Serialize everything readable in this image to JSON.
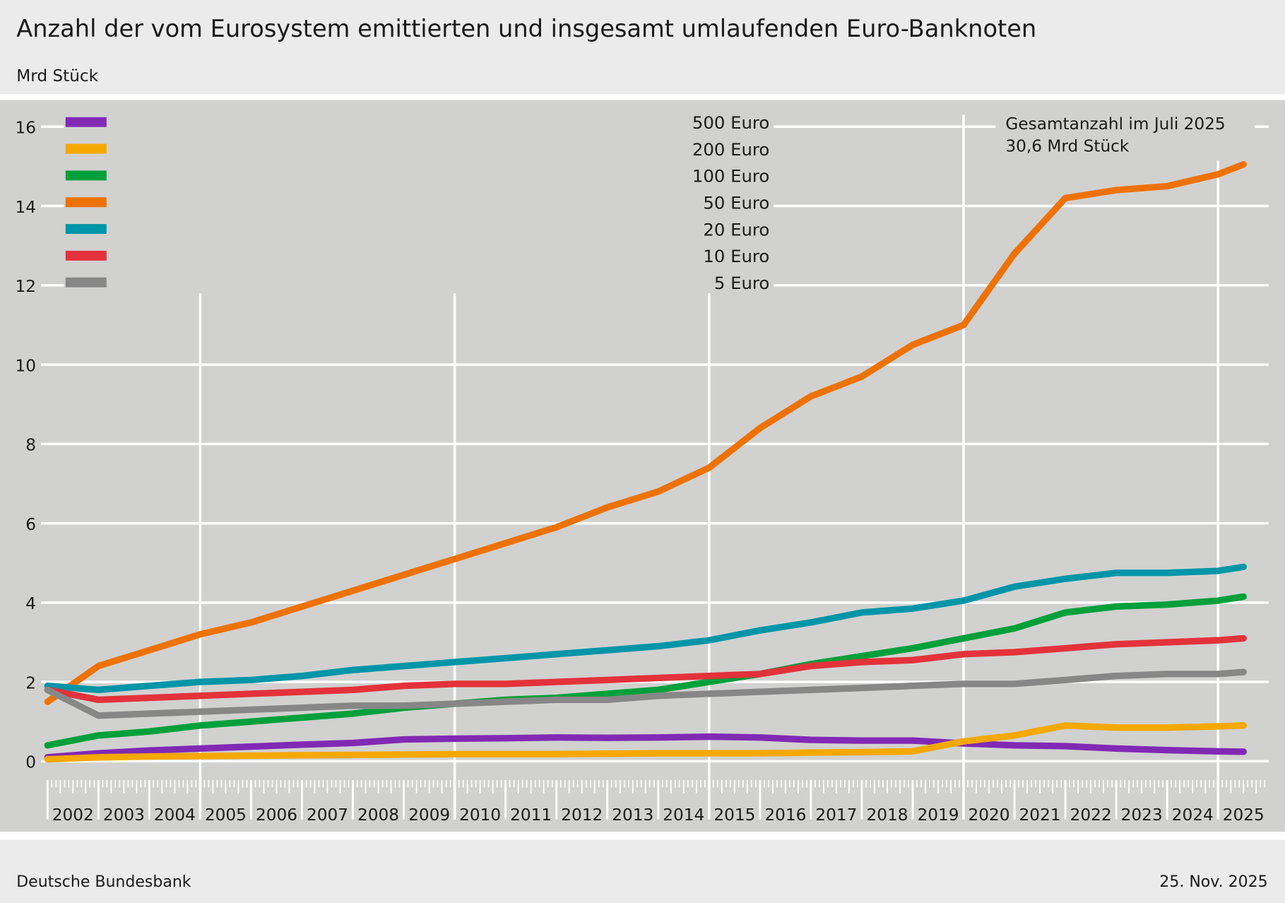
{
  "header": {
    "title": "Anzahl der vom Eurosystem emittierten und insgesamt umlaufenden Euro-Banknoten",
    "unit": "Mrd Stück"
  },
  "footer": {
    "source": "Deutsche Bundesbank",
    "date": "25. Nov. 2025"
  },
  "annotation": {
    "line1": "Gesamtanzahl im  Juli 2025",
    "line2": "30,6 Mrd Stück"
  },
  "chart_data": {
    "type": "line",
    "title": "Anzahl der vom Eurosystem emittierten und insgesamt umlaufenden Euro-Banknoten",
    "ylabel": "Mrd Stück",
    "ylim": [
      0,
      16
    ],
    "yticks": [
      "0",
      "2",
      "4",
      "6",
      "8",
      "10",
      "12",
      "14",
      "16"
    ],
    "xlim": [
      "2002-01",
      "2025-12"
    ],
    "xticks": [
      "2002",
      "2003",
      "2004",
      "2005",
      "2006",
      "2007",
      "2008",
      "2009",
      "2010",
      "2011",
      "2012",
      "2013",
      "2014",
      "2015",
      "2016",
      "2017",
      "2018",
      "2019",
      "2020",
      "2021",
      "2022",
      "2023",
      "2024",
      "2025"
    ],
    "grid": true,
    "legend_position": "top-left",
    "x": [
      "2002-01",
      "2003-01",
      "2004-01",
      "2005-01",
      "2006-01",
      "2007-01",
      "2008-01",
      "2009-01",
      "2010-01",
      "2011-01",
      "2012-01",
      "2013-01",
      "2014-01",
      "2015-01",
      "2016-01",
      "2017-01",
      "2018-01",
      "2019-01",
      "2020-01",
      "2021-01",
      "2022-01",
      "2023-01",
      "2024-01",
      "2025-01",
      "2025-07"
    ],
    "series": [
      {
        "name": "500 Euro",
        "color": "#8129b4",
        "values": [
          0.1,
          0.2,
          0.27,
          0.32,
          0.37,
          0.42,
          0.46,
          0.55,
          0.57,
          0.58,
          0.6,
          0.59,
          0.6,
          0.62,
          0.6,
          0.54,
          0.52,
          0.52,
          0.45,
          0.4,
          0.38,
          0.32,
          0.28,
          0.25,
          0.24
        ]
      },
      {
        "name": "200 Euro",
        "color": "#f5a800",
        "values": [
          0.05,
          0.1,
          0.12,
          0.13,
          0.14,
          0.15,
          0.16,
          0.17,
          0.18,
          0.18,
          0.18,
          0.19,
          0.2,
          0.2,
          0.2,
          0.22,
          0.23,
          0.25,
          0.5,
          0.65,
          0.9,
          0.85,
          0.85,
          0.88,
          0.9
        ]
      },
      {
        "name": "100 Euro",
        "color": "#00a03a",
        "values": [
          0.4,
          0.65,
          0.75,
          0.9,
          1.0,
          1.1,
          1.2,
          1.35,
          1.45,
          1.55,
          1.6,
          1.7,
          1.8,
          2.0,
          2.2,
          2.45,
          2.65,
          2.85,
          3.1,
          3.35,
          3.75,
          3.9,
          3.95,
          4.05,
          4.15
        ]
      },
      {
        "name": "50 Euro",
        "color": "#ee7203",
        "values": [
          1.5,
          2.4,
          2.8,
          3.2,
          3.5,
          3.9,
          4.3,
          4.7,
          5.1,
          5.5,
          5.9,
          6.4,
          6.8,
          7.4,
          8.4,
          9.2,
          9.7,
          10.5,
          11.0,
          12.8,
          14.2,
          14.4,
          14.5,
          14.8,
          15.05
        ]
      },
      {
        "name": "20 Euro",
        "color": "#0095a8",
        "values": [
          1.9,
          1.8,
          1.9,
          2.0,
          2.05,
          2.15,
          2.3,
          2.4,
          2.5,
          2.6,
          2.7,
          2.8,
          2.9,
          3.05,
          3.3,
          3.5,
          3.75,
          3.85,
          4.05,
          4.4,
          4.6,
          4.75,
          4.75,
          4.8,
          4.9
        ]
      },
      {
        "name": "10 Euro",
        "color": "#e3323a",
        "values": [
          1.8,
          1.55,
          1.6,
          1.65,
          1.7,
          1.75,
          1.8,
          1.9,
          1.95,
          1.95,
          2.0,
          2.05,
          2.1,
          2.15,
          2.2,
          2.4,
          2.5,
          2.55,
          2.7,
          2.75,
          2.85,
          2.95,
          3.0,
          3.05,
          3.1
        ]
      },
      {
        "name": "5 Euro",
        "color": "#878787",
        "values": [
          1.8,
          1.15,
          1.2,
          1.25,
          1.3,
          1.35,
          1.4,
          1.4,
          1.45,
          1.5,
          1.55,
          1.55,
          1.65,
          1.7,
          1.75,
          1.8,
          1.85,
          1.9,
          1.95,
          1.95,
          2.05,
          2.15,
          2.2,
          2.2,
          2.25
        ]
      }
    ]
  }
}
